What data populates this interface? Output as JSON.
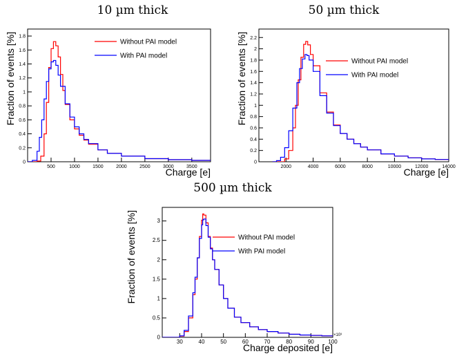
{
  "chart_data": [
    {
      "type": "line",
      "panel_title": "10 µm thick",
      "xlabel": "Charge [e]",
      "ylabel": "Fraction of events [%]",
      "xlim": [
        0,
        3900
      ],
      "ylim": [
        0,
        1.9
      ],
      "xticks": [
        500,
        1000,
        1500,
        2000,
        2500,
        3000,
        3500
      ],
      "yticks": [
        0.2,
        0.4,
        0.6,
        0.8,
        1,
        1.2,
        1.4,
        1.6,
        1.8
      ],
      "xtick_labels": [
        "500",
        "1000",
        "1500",
        "2000",
        "2500",
        "3000",
        "3500"
      ],
      "ytick_labels": [
        "0.2",
        "0.4",
        "0.6",
        "0.8",
        "1",
        "1.2",
        "1.4",
        "1.6",
        "1.8"
      ],
      "y_zero_label": "0",
      "x_multiplier_label": "",
      "legend_position": "top-right",
      "series": [
        {
          "name": "Without PAI model",
          "color": "#ff0000",
          "points": [
            [
              0,
              0
            ],
            [
              100,
              0
            ],
            [
              200,
              0.01
            ],
            [
              280,
              0.08
            ],
            [
              350,
              0.4
            ],
            [
              400,
              0.85
            ],
            [
              450,
              1.35
            ],
            [
              500,
              1.62
            ],
            [
              550,
              1.72
            ],
            [
              600,
              1.66
            ],
            [
              650,
              1.5
            ],
            [
              700,
              1.25
            ],
            [
              750,
              1.02
            ],
            [
              800,
              0.82
            ],
            [
              900,
              0.6
            ],
            [
              1000,
              0.47
            ],
            [
              1100,
              0.38
            ],
            [
              1200,
              0.31
            ],
            [
              1300,
              0.25
            ],
            [
              1500,
              0.17
            ],
            [
              1700,
              0.12
            ],
            [
              2000,
              0.08
            ],
            [
              2500,
              0.045
            ],
            [
              3000,
              0.03
            ],
            [
              3500,
              0.02
            ],
            [
              3900,
              0.015
            ]
          ]
        },
        {
          "name": "With PAI model",
          "color": "#0000ff",
          "points": [
            [
              0,
              0
            ],
            [
              100,
              0.02
            ],
            [
              200,
              0.15
            ],
            [
              250,
              0.35
            ],
            [
              300,
              0.6
            ],
            [
              350,
              0.9
            ],
            [
              400,
              1.15
            ],
            [
              450,
              1.33
            ],
            [
              500,
              1.43
            ],
            [
              550,
              1.45
            ],
            [
              600,
              1.38
            ],
            [
              650,
              1.24
            ],
            [
              700,
              1.08
            ],
            [
              800,
              0.83
            ],
            [
              900,
              0.64
            ],
            [
              1000,
              0.5
            ],
            [
              1100,
              0.4
            ],
            [
              1200,
              0.32
            ],
            [
              1300,
              0.26
            ],
            [
              1500,
              0.17
            ],
            [
              1700,
              0.12
            ],
            [
              2000,
              0.08
            ],
            [
              2500,
              0.045
            ],
            [
              3000,
              0.03
            ],
            [
              3500,
              0.02
            ],
            [
              3900,
              0.015
            ]
          ]
        }
      ]
    },
    {
      "type": "line",
      "panel_title": "50 µm thick",
      "xlabel": "Charge [e]",
      "ylabel": "Fraction of events [%]",
      "xlim": [
        0,
        14000
      ],
      "ylim": [
        0,
        2.35
      ],
      "xticks": [
        2000,
        4000,
        6000,
        8000,
        10000,
        12000,
        14000
      ],
      "yticks": [
        0.2,
        0.4,
        0.6,
        0.8,
        1,
        1.2,
        1.4,
        1.6,
        1.8,
        2,
        2.2
      ],
      "xtick_labels": [
        "2000",
        "4000",
        "6000",
        "8000",
        "10000",
        "12000",
        "14000"
      ],
      "ytick_labels": [
        "0.2",
        "0.4",
        "0.6",
        "0.8",
        "1",
        "1.2",
        "1.4",
        "1.6",
        "1.8",
        "2",
        "2.2"
      ],
      "y_zero_label": "0",
      "x_multiplier_label": "",
      "legend_position": "top-right",
      "series": [
        {
          "name": "Without PAI model",
          "color": "#ff0000",
          "points": [
            [
              1000,
              0
            ],
            [
              1500,
              0
            ],
            [
              1900,
              0.05
            ],
            [
              2200,
              0.2
            ],
            [
              2500,
              0.6
            ],
            [
              2700,
              1.0
            ],
            [
              2900,
              1.45
            ],
            [
              3100,
              1.85
            ],
            [
              3300,
              2.08
            ],
            [
              3450,
              2.13
            ],
            [
              3600,
              2.07
            ],
            [
              3800,
              1.9
            ],
            [
              4000,
              1.7
            ],
            [
              4500,
              1.22
            ],
            [
              5000,
              0.88
            ],
            [
              5500,
              0.65
            ],
            [
              6000,
              0.5
            ],
            [
              6500,
              0.4
            ],
            [
              7000,
              0.32
            ],
            [
              7500,
              0.26
            ],
            [
              8000,
              0.21
            ],
            [
              9000,
              0.14
            ],
            [
              10000,
              0.1
            ],
            [
              11000,
              0.07
            ],
            [
              12000,
              0.05
            ],
            [
              13000,
              0.04
            ],
            [
              14000,
              0.03
            ]
          ]
        },
        {
          "name": "With PAI model",
          "color": "#0000ff",
          "points": [
            [
              1000,
              0
            ],
            [
              1300,
              0.02
            ],
            [
              1600,
              0.08
            ],
            [
              1900,
              0.25
            ],
            [
              2200,
              0.55
            ],
            [
              2500,
              0.95
            ],
            [
              2800,
              1.4
            ],
            [
              3000,
              1.65
            ],
            [
              3200,
              1.82
            ],
            [
              3400,
              1.9
            ],
            [
              3550,
              1.88
            ],
            [
              3700,
              1.8
            ],
            [
              4000,
              1.6
            ],
            [
              4500,
              1.17
            ],
            [
              5000,
              0.86
            ],
            [
              5500,
              0.64
            ],
            [
              6000,
              0.5
            ],
            [
              6500,
              0.4
            ],
            [
              7000,
              0.32
            ],
            [
              7500,
              0.26
            ],
            [
              8000,
              0.21
            ],
            [
              9000,
              0.14
            ],
            [
              10000,
              0.1
            ],
            [
              11000,
              0.07
            ],
            [
              12000,
              0.05
            ],
            [
              13000,
              0.04
            ],
            [
              14000,
              0.03
            ]
          ]
        }
      ]
    },
    {
      "type": "line",
      "panel_title": "500 µm thick",
      "xlabel": "Charge deposited [e]",
      "ylabel": "Fraction of events [%]",
      "xlim": [
        22,
        100
      ],
      "ylim": [
        0,
        3.35
      ],
      "xticks": [
        30,
        40,
        50,
        60,
        70,
        80,
        90,
        100
      ],
      "yticks": [
        0.5,
        1,
        1.5,
        2,
        2.5,
        3
      ],
      "xtick_labels": [
        "30",
        "40",
        "50",
        "60",
        "70",
        "80",
        "90",
        "100"
      ],
      "ytick_labels": [
        "0.5",
        "1",
        "1.5",
        "2",
        "2.5",
        "3"
      ],
      "y_zero_label": "0",
      "x_multiplier_label": "×10³",
      "legend_position": "top-right",
      "series": [
        {
          "name": "Without PAI model",
          "color": "#ff0000",
          "points": [
            [
              22,
              0
            ],
            [
              28,
              0
            ],
            [
              30,
              0.03
            ],
            [
              32,
              0.15
            ],
            [
              34,
              0.5
            ],
            [
              36,
              1.1
            ],
            [
              37,
              1.5
            ],
            [
              38,
              2.05
            ],
            [
              39,
              2.6
            ],
            [
              40,
              3.02
            ],
            [
              40.5,
              3.18
            ],
            [
              41,
              3.15
            ],
            [
              42,
              2.95
            ],
            [
              43,
              2.6
            ],
            [
              44,
              2.3
            ],
            [
              45,
              2.0
            ],
            [
              46,
              1.75
            ],
            [
              48,
              1.35
            ],
            [
              50,
              1.0
            ],
            [
              52,
              0.75
            ],
            [
              55,
              0.52
            ],
            [
              58,
              0.38
            ],
            [
              62,
              0.27
            ],
            [
              66,
              0.2
            ],
            [
              70,
              0.15
            ],
            [
              75,
              0.11
            ],
            [
              80,
              0.08
            ],
            [
              85,
              0.06
            ],
            [
              90,
              0.05
            ],
            [
              95,
              0.04
            ],
            [
              100,
              0.03
            ]
          ]
        },
        {
          "name": "With PAI model",
          "color": "#0000ff",
          "points": [
            [
              22,
              0
            ],
            [
              28,
              0
            ],
            [
              30,
              0.04
            ],
            [
              32,
              0.18
            ],
            [
              34,
              0.55
            ],
            [
              36,
              1.15
            ],
            [
              37,
              1.55
            ],
            [
              38,
              2.05
            ],
            [
              39,
              2.55
            ],
            [
              40,
              2.9
            ],
            [
              40.5,
              3.03
            ],
            [
              41,
              3.05
            ],
            [
              42,
              2.88
            ],
            [
              43,
              2.58
            ],
            [
              44,
              2.28
            ],
            [
              45,
              2.0
            ],
            [
              46,
              1.75
            ],
            [
              48,
              1.35
            ],
            [
              50,
              1.0
            ],
            [
              52,
              0.75
            ],
            [
              55,
              0.52
            ],
            [
              58,
              0.38
            ],
            [
              62,
              0.27
            ],
            [
              66,
              0.2
            ],
            [
              70,
              0.15
            ],
            [
              75,
              0.11
            ],
            [
              80,
              0.08
            ],
            [
              85,
              0.06
            ],
            [
              90,
              0.05
            ],
            [
              95,
              0.04
            ],
            [
              100,
              0.03
            ]
          ]
        }
      ]
    }
  ]
}
